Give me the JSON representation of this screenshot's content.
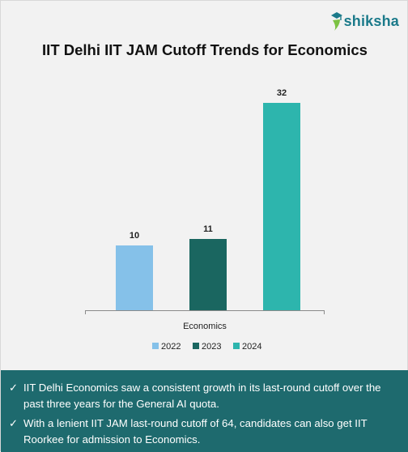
{
  "brand": {
    "name": "shiksha",
    "logo_icon": "graduation-cap-icon",
    "color": "#1b7a8a"
  },
  "chart_data": {
    "type": "bar",
    "title": "IIT Delhi IIT JAM Cutoff Trends for Economics",
    "categories": [
      "Economics"
    ],
    "series": [
      {
        "name": "2022",
        "values": [
          10
        ],
        "color": "#85c1e9"
      },
      {
        "name": "2023",
        "values": [
          11
        ],
        "color": "#1a6660"
      },
      {
        "name": "2024",
        "values": [
          32
        ],
        "color": "#2db5ad"
      }
    ],
    "ylim": [
      0,
      35
    ],
    "grid": false,
    "legend": "bottom",
    "data_labels": true
  },
  "notes": [
    "IIT Delhi Economics saw a consistent growth in its last-round cutoff over the past three years for the General AI quota.",
    "With a lenient IIT JAM last-round cutoff of 64, candidates can also get IIT Roorkee for admission to Economics."
  ],
  "note_icon": "check-icon",
  "footer_color": "#1e6a6e"
}
